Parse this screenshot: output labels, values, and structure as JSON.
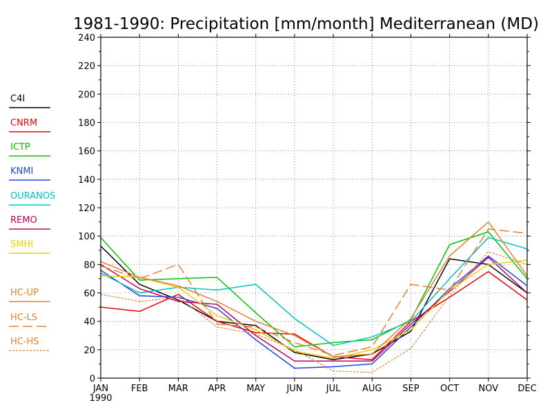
{
  "chart_data": {
    "type": "line",
    "title": "1981-1990: Precipitation [mm/month] Mediterranean (MD)",
    "x_labels": [
      "JAN",
      "FEB",
      "MAR",
      "APR",
      "MAY",
      "JUN",
      "JUL",
      "AUG",
      "SEP",
      "OCT",
      "NOV",
      "DEC"
    ],
    "x_sublabel": "1990",
    "ylim": [
      0,
      240
    ],
    "yticks": [
      0,
      20,
      40,
      60,
      80,
      100,
      120,
      140,
      160,
      180,
      200,
      220,
      240
    ],
    "grid": true,
    "legend_position": "left",
    "series": [
      {
        "name": "C4I",
        "color": "#000000",
        "dash": "solid",
        "values": [
          93,
          66,
          55,
          40,
          37,
          18,
          13,
          17,
          33,
          84,
          80,
          60
        ]
      },
      {
        "name": "CNRM",
        "color": "#e8000b",
        "dash": "solid",
        "values": [
          50,
          47,
          59,
          40,
          32,
          31,
          15,
          13,
          40,
          57,
          75,
          55
        ]
      },
      {
        "name": "ICTP",
        "color": "#00c400",
        "dash": "solid",
        "values": [
          99,
          69,
          70,
          71,
          46,
          22,
          25,
          27,
          41,
          94,
          103,
          70
        ]
      },
      {
        "name": "KNMI",
        "color": "#2040e0",
        "dash": "solid",
        "values": [
          76,
          58,
          57,
          49,
          27,
          7,
          8,
          10,
          36,
          63,
          86,
          65
        ]
      },
      {
        "name": "OURANOS",
        "color": "#00c0c0",
        "dash": "solid",
        "values": [
          74,
          60,
          64,
          62,
          66,
          42,
          23,
          29,
          40,
          70,
          99,
          91
        ]
      },
      {
        "name": "REMO",
        "color": "#c0005c",
        "dash": "solid",
        "values": [
          80,
          63,
          54,
          52,
          30,
          12,
          12,
          12,
          38,
          61,
          85,
          60
        ]
      },
      {
        "name": "SMHI",
        "color": "#e8d000",
        "dash": "solid",
        "values": [
          72,
          71,
          64,
          44,
          34,
          19,
          14,
          20,
          34,
          62,
          80,
          83
        ]
      },
      {
        "name": "HC-UP",
        "color": "#e08030",
        "dash": "solid",
        "values": [
          82,
          71,
          65,
          54,
          40,
          30,
          15,
          17,
          42,
          86,
          110,
          72
        ]
      },
      {
        "name": "HC-LS",
        "color": "#e08030",
        "dash": "long",
        "values": [
          79,
          70,
          80,
          38,
          36,
          25,
          16,
          22,
          66,
          62,
          105,
          102
        ]
      },
      {
        "name": "HC-HS",
        "color": "#e08030",
        "dash": "short",
        "values": [
          59,
          54,
          57,
          36,
          31,
          20,
          5,
          4,
          21,
          58,
          89,
          80
        ]
      }
    ]
  }
}
